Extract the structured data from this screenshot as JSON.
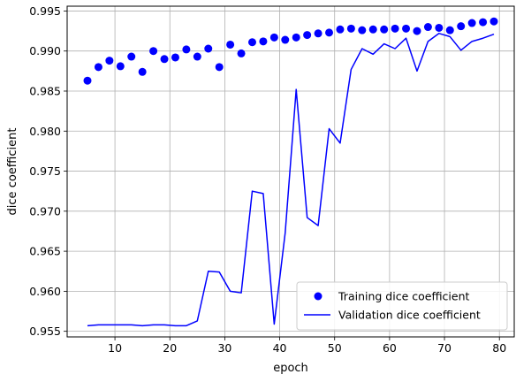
{
  "chart_data": {
    "type": "line",
    "title": "",
    "xlabel": "epoch",
    "ylabel": "dice coefficient",
    "xlim": [
      1.3,
      82.7
    ],
    "ylim": [
      0.9543,
      0.9956
    ],
    "xticks": [
      10,
      20,
      30,
      40,
      50,
      60,
      70,
      80
    ],
    "yticks": [
      0.955,
      0.96,
      0.965,
      0.97,
      0.975,
      0.98,
      0.985,
      0.99,
      0.995
    ],
    "ytick_labels": [
      "0.955",
      "0.960",
      "0.965",
      "0.970",
      "0.975",
      "0.980",
      "0.985",
      "0.990",
      "0.995"
    ],
    "grid": true,
    "legend_position": "lower-right",
    "x": [
      5,
      7,
      9,
      11,
      13,
      15,
      17,
      19,
      21,
      23,
      25,
      27,
      29,
      31,
      33,
      35,
      37,
      39,
      41,
      43,
      45,
      47,
      49,
      51,
      53,
      55,
      57,
      59,
      61,
      63,
      65,
      67,
      69,
      71,
      73,
      75,
      77,
      79
    ],
    "series": [
      {
        "name": "Training dice coefficient",
        "style": "markers",
        "color": "#0000ff",
        "values": [
          0.9863,
          0.988,
          0.9888,
          0.9881,
          0.9893,
          0.9874,
          0.99,
          0.989,
          0.9892,
          0.9902,
          0.9893,
          0.9903,
          0.988,
          0.9908,
          0.9897,
          0.9911,
          0.9912,
          0.9917,
          0.9914,
          0.9917,
          0.992,
          0.9922,
          0.9923,
          0.9927,
          0.9928,
          0.9926,
          0.9927,
          0.9927,
          0.9928,
          0.9928,
          0.9925,
          0.993,
          0.9929,
          0.9926,
          0.9931,
          0.9935,
          0.9936,
          0.9937
        ]
      },
      {
        "name": "Validation dice coefficient",
        "style": "line",
        "color": "#0000ff",
        "values": [
          0.9557,
          0.9558,
          0.9558,
          0.9558,
          0.9558,
          0.9557,
          0.9558,
          0.9558,
          0.9557,
          0.9557,
          0.9563,
          0.9625,
          0.9624,
          0.96,
          0.9598,
          0.9725,
          0.9722,
          0.9559,
          0.9673,
          0.9852,
          0.9692,
          0.9682,
          0.9803,
          0.9785,
          0.9877,
          0.9903,
          0.9896,
          0.9909,
          0.9903,
          0.9916,
          0.9875,
          0.9912,
          0.9922,
          0.9918,
          0.9901,
          0.9912,
          0.9916,
          0.9921
        ]
      }
    ]
  }
}
